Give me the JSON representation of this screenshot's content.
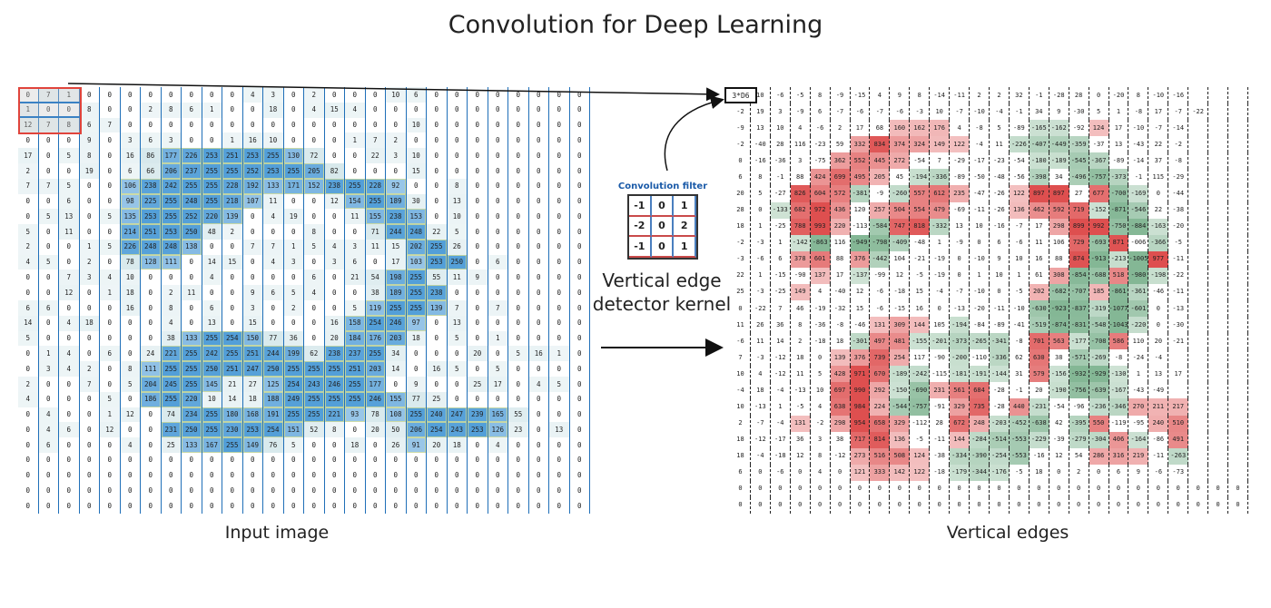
{
  "title": "Convolution for Deep Learning",
  "input_caption": "Input image",
  "output_caption": "Vertical edges",
  "kernel": {
    "title": "Convolution filter",
    "label_line1": "Vertical edge",
    "label_line2": "detector kernel",
    "values": [
      [
        "-1",
        "0",
        "1"
      ],
      [
        "-2",
        "0",
        "2"
      ],
      [
        "-1",
        "0",
        "1"
      ]
    ]
  },
  "output_first_value": "3*D6",
  "input_rows": [
    [
      "0",
      "7",
      "1",
      "0",
      "0",
      "0",
      "0",
      "0",
      "0",
      "0",
      "0",
      "4",
      "3",
      "0",
      "2",
      "0",
      "0",
      "0",
      "10",
      "6",
      "0",
      "0",
      "0",
      "0",
      "0",
      "0",
      "0",
      "0"
    ],
    [
      "1",
      "0",
      "0",
      "8",
      "0",
      "0",
      "2",
      "8",
      "6",
      "1",
      "0",
      "0",
      "18",
      "0",
      "4",
      "15",
      "4",
      "0",
      "0",
      "0",
      "0",
      "0",
      "0",
      "0",
      "0",
      "0",
      "0",
      "0"
    ],
    [
      "12",
      "7",
      "8",
      "6",
      "7",
      "0",
      "0",
      "0",
      "0",
      "0",
      "0",
      "0",
      "0",
      "0",
      "0",
      "0",
      "0",
      "0",
      "0",
      "10",
      "0",
      "0",
      "0",
      "0",
      "0",
      "0",
      "0",
      "0"
    ],
    [
      "0",
      "0",
      "0",
      "9",
      "0",
      "3",
      "6",
      "3",
      "0",
      "0",
      "1",
      "16",
      "10",
      "0",
      "0",
      "0",
      "1",
      "7",
      "2",
      "0",
      "0",
      "0",
      "0",
      "0",
      "0",
      "0",
      "0",
      "0"
    ],
    [
      "17",
      "0",
      "5",
      "8",
      "0",
      "16",
      "86",
      "177",
      "226",
      "253",
      "251",
      "253",
      "255",
      "130",
      "72",
      "0",
      "0",
      "22",
      "3",
      "10",
      "0",
      "0",
      "0",
      "0",
      "0",
      "0",
      "0",
      "0"
    ],
    [
      "2",
      "0",
      "0",
      "19",
      "0",
      "6",
      "66",
      "206",
      "237",
      "255",
      "255",
      "252",
      "253",
      "255",
      "205",
      "82",
      "0",
      "0",
      "0",
      "15",
      "0",
      "0",
      "0",
      "0",
      "0",
      "0",
      "0",
      "0"
    ],
    [
      "7",
      "7",
      "5",
      "0",
      "0",
      "106",
      "238",
      "242",
      "255",
      "255",
      "228",
      "192",
      "133",
      "171",
      "152",
      "238",
      "255",
      "228",
      "92",
      "0",
      "0",
      "8",
      "0",
      "0",
      "0",
      "0",
      "0",
      "0"
    ],
    [
      "0",
      "0",
      "6",
      "0",
      "0",
      "98",
      "225",
      "255",
      "248",
      "255",
      "218",
      "107",
      "11",
      "0",
      "0",
      "12",
      "154",
      "255",
      "189",
      "30",
      "0",
      "13",
      "0",
      "0",
      "0",
      "0",
      "0",
      "0"
    ],
    [
      "0",
      "5",
      "13",
      "0",
      "5",
      "135",
      "253",
      "255",
      "252",
      "220",
      "139",
      "0",
      "4",
      "19",
      "0",
      "0",
      "11",
      "155",
      "238",
      "153",
      "0",
      "10",
      "0",
      "0",
      "0",
      "0",
      "0",
      "0"
    ],
    [
      "5",
      "0",
      "11",
      "0",
      "0",
      "214",
      "251",
      "253",
      "250",
      "48",
      "2",
      "0",
      "0",
      "0",
      "8",
      "0",
      "0",
      "71",
      "244",
      "248",
      "22",
      "5",
      "0",
      "0",
      "0",
      "0",
      "0",
      "0"
    ],
    [
      "2",
      "0",
      "0",
      "1",
      "5",
      "226",
      "248",
      "248",
      "138",
      "0",
      "0",
      "7",
      "7",
      "1",
      "5",
      "4",
      "3",
      "11",
      "15",
      "202",
      "255",
      "26",
      "0",
      "0",
      "0",
      "0",
      "0",
      "0"
    ],
    [
      "4",
      "5",
      "0",
      "2",
      "0",
      "78",
      "128",
      "111",
      "0",
      "14",
      "15",
      "0",
      "4",
      "3",
      "0",
      "3",
      "6",
      "0",
      "17",
      "103",
      "253",
      "250",
      "0",
      "6",
      "0",
      "0",
      "0",
      "0"
    ],
    [
      "0",
      "0",
      "7",
      "3",
      "4",
      "10",
      "0",
      "0",
      "0",
      "4",
      "0",
      "0",
      "0",
      "0",
      "6",
      "0",
      "21",
      "54",
      "198",
      "255",
      "55",
      "11",
      "9",
      "0",
      "0",
      "0",
      "0",
      "0"
    ],
    [
      "0",
      "0",
      "12",
      "0",
      "1",
      "18",
      "0",
      "2",
      "11",
      "0",
      "0",
      "9",
      "6",
      "5",
      "4",
      "0",
      "0",
      "38",
      "189",
      "255",
      "238",
      "0",
      "0",
      "0",
      "0",
      "0",
      "0",
      "0"
    ],
    [
      "6",
      "6",
      "0",
      "0",
      "0",
      "16",
      "0",
      "8",
      "0",
      "6",
      "0",
      "3",
      "0",
      "2",
      "0",
      "0",
      "5",
      "119",
      "255",
      "255",
      "139",
      "7",
      "0",
      "7",
      "0",
      "0",
      "0",
      "0"
    ],
    [
      "14",
      "0",
      "4",
      "18",
      "0",
      "0",
      "0",
      "4",
      "0",
      "13",
      "0",
      "15",
      "0",
      "0",
      "0",
      "16",
      "158",
      "254",
      "246",
      "97",
      "0",
      "13",
      "0",
      "0",
      "0",
      "0",
      "0",
      "0"
    ],
    [
      "5",
      "0",
      "0",
      "0",
      "0",
      "0",
      "0",
      "38",
      "133",
      "255",
      "254",
      "150",
      "77",
      "36",
      "0",
      "20",
      "184",
      "176",
      "203",
      "18",
      "0",
      "5",
      "0",
      "1",
      "0",
      "0",
      "0",
      "0"
    ],
    [
      "0",
      "1",
      "4",
      "0",
      "6",
      "0",
      "24",
      "221",
      "255",
      "242",
      "255",
      "251",
      "244",
      "199",
      "62",
      "238",
      "237",
      "255",
      "34",
      "0",
      "0",
      "0",
      "20",
      "0",
      "5",
      "16",
      "1",
      "0"
    ],
    [
      "0",
      "3",
      "4",
      "2",
      "0",
      "8",
      "111",
      "255",
      "255",
      "250",
      "251",
      "247",
      "250",
      "255",
      "255",
      "255",
      "251",
      "203",
      "14",
      "0",
      "16",
      "5",
      "0",
      "5",
      "0",
      "0",
      "0",
      "0"
    ],
    [
      "2",
      "0",
      "0",
      "7",
      "0",
      "5",
      "204",
      "245",
      "255",
      "145",
      "21",
      "27",
      "125",
      "254",
      "243",
      "246",
      "255",
      "177",
      "0",
      "9",
      "0",
      "0",
      "25",
      "17",
      "0",
      "4",
      "5",
      "0"
    ],
    [
      "4",
      "0",
      "0",
      "0",
      "5",
      "0",
      "186",
      "255",
      "220",
      "10",
      "14",
      "18",
      "188",
      "249",
      "255",
      "255",
      "255",
      "246",
      "155",
      "77",
      "25",
      "0",
      "0",
      "0",
      "0",
      "0",
      "0",
      "0"
    ],
    [
      "0",
      "4",
      "0",
      "0",
      "1",
      "12",
      "0",
      "74",
      "234",
      "255",
      "180",
      "168",
      "191",
      "255",
      "255",
      "221",
      "93",
      "78",
      "108",
      "255",
      "240",
      "247",
      "239",
      "165",
      "55",
      "0",
      "0",
      "0"
    ],
    [
      "0",
      "4",
      "6",
      "0",
      "12",
      "0",
      "0",
      "231",
      "250",
      "255",
      "230",
      "253",
      "254",
      "151",
      "52",
      "8",
      "0",
      "20",
      "50",
      "206",
      "254",
      "243",
      "253",
      "126",
      "23",
      "0",
      "13",
      "0"
    ],
    [
      "0",
      "6",
      "0",
      "0",
      "0",
      "4",
      "0",
      "25",
      "133",
      "167",
      "255",
      "149",
      "76",
      "5",
      "0",
      "0",
      "18",
      "0",
      "26",
      "91",
      "20",
      "18",
      "0",
      "4",
      "0",
      "0",
      "0",
      "0"
    ],
    [
      "0",
      "0",
      "0",
      "0",
      "0",
      "0",
      "0",
      "0",
      "0",
      "0",
      "0",
      "0",
      "0",
      "0",
      "0",
      "0",
      "0",
      "0",
      "0",
      "0",
      "0",
      "0",
      "0",
      "0",
      "0",
      "0",
      "0",
      "0"
    ],
    [
      "0",
      "0",
      "0",
      "0",
      "0",
      "0",
      "0",
      "0",
      "0",
      "0",
      "0",
      "0",
      "0",
      "0",
      "0",
      "0",
      "0",
      "0",
      "0",
      "0",
      "0",
      "0",
      "0",
      "0",
      "0",
      "0",
      "0",
      "0"
    ],
    [
      "0",
      "0",
      "0",
      "0",
      "0",
      "0",
      "0",
      "0",
      "0",
      "0",
      "0",
      "0",
      "0",
      "0",
      "0",
      "0",
      "0",
      "0",
      "0",
      "0",
      "0",
      "0",
      "0",
      "0",
      "0",
      "0",
      "0",
      "0"
    ],
    [
      "0",
      "0",
      "0",
      "0",
      "0",
      "0",
      "0",
      "0",
      "0",
      "0",
      "0",
      "0",
      "0",
      "0",
      "0",
      "0",
      "0",
      "0",
      "0",
      "0",
      "0",
      "0",
      "0",
      "0",
      "0",
      "0",
      "0",
      "0"
    ]
  ],
  "output_rows": [
    [
      "",
      "10",
      "-6",
      "-5",
      "8",
      "-9",
      "-15",
      "4",
      "9",
      "8",
      "-14",
      "-11",
      "2",
      "2",
      "32",
      "-1",
      "-28",
      "28",
      "0",
      "-20",
      "8",
      "-10",
      "-16",
      "",
      "",
      ""
    ],
    [
      "-2",
      "19",
      "3",
      "-9",
      "6",
      "-7",
      "-6",
      "-7",
      "-6",
      "-3",
      "10",
      "-7",
      "-10",
      "-4",
      "-1",
      "34",
      "9",
      "-30",
      "5",
      "1",
      "-8",
      "17",
      "-7",
      "-22",
      "",
      ""
    ],
    [
      "-9",
      "13",
      "10",
      "4",
      "-6",
      "2",
      "17",
      "68",
      "160",
      "162",
      "176",
      "4",
      "-8",
      "5",
      "-89",
      "-165",
      "-162",
      "-92",
      "124",
      "17",
      "-10",
      "-7",
      "-14",
      "",
      ""
    ],
    [
      "-2",
      "-40",
      "28",
      "116",
      "-23",
      "59",
      "332",
      "834",
      "374",
      "324",
      "149",
      "122",
      "-4",
      "11",
      "-226",
      "-407",
      "-449",
      "-359",
      "-37",
      "13",
      "-43",
      "22",
      "-2",
      "",
      ""
    ],
    [
      "0",
      "-16",
      "-36",
      "3",
      "-75",
      "362",
      "552",
      "445",
      "272",
      "-54",
      "7",
      "-29",
      "-17",
      "-23",
      "-54",
      "-180",
      "-189",
      "-545",
      "-367",
      "-89",
      "-14",
      "37",
      "-8",
      "",
      ""
    ],
    [
      "6",
      "8",
      "-1",
      "88",
      "424",
      "699",
      "495",
      "205",
      "45",
      "-194",
      "-336",
      "-89",
      "-50",
      "-48",
      "-56",
      "-398",
      "34",
      "-496",
      "-757",
      "-373",
      "-1",
      "115",
      "-29",
      ""
    ],
    [
      "20",
      "5",
      "-27",
      "826",
      "604",
      "572",
      "-381",
      "-9",
      "-260",
      "557",
      "612",
      "235",
      "-47",
      "-26",
      "122",
      "897",
      "897",
      "27",
      "677",
      "-700",
      "-169",
      "0",
      "-44",
      ""
    ],
    [
      "28",
      "0",
      "-133",
      "682",
      "972",
      "436",
      "120",
      "257",
      "504",
      "554",
      "479",
      "-69",
      "-11",
      "-26",
      "136",
      "462",
      "592",
      "719",
      "-152",
      "-871",
      "-546",
      "22",
      "-38",
      ""
    ],
    [
      "18",
      "1",
      "-25",
      "788",
      "993",
      "220",
      "-113",
      "-584",
      "747",
      "818",
      "-332",
      "13",
      "10",
      "-16",
      "-7",
      "17",
      "298",
      "899",
      "992",
      "-750",
      "-884",
      "-163",
      "-20",
      ""
    ],
    [
      "-2",
      "-3",
      "1",
      "-142",
      "-863",
      "116",
      "-949",
      "-798",
      "-409",
      "-48",
      "1",
      "-9",
      "0",
      "6",
      "-6",
      "11",
      "106",
      "729",
      "-693",
      "871",
      "-006",
      "-366",
      "-5",
      ""
    ],
    [
      "-3",
      "-6",
      "6",
      "378",
      "601",
      "88",
      "376",
      "-442",
      "104",
      "-21",
      "-19",
      "0",
      "-10",
      "9",
      "10",
      "16",
      "88",
      "874",
      "-913",
      "-213",
      "-1005",
      "977",
      "-11",
      ""
    ],
    [
      "22",
      "1",
      "-15",
      "-90",
      "137",
      "17",
      "-137",
      "-99",
      "12",
      "-5",
      "-19",
      "0",
      "1",
      "10",
      "1",
      "61",
      "308",
      "-854",
      "-688",
      "518",
      "-980",
      "-198",
      "-22",
      ""
    ],
    [
      "25",
      "-3",
      "-25",
      "149",
      "4",
      "-40",
      "12",
      "-6",
      "-18",
      "15",
      "-4",
      "-7",
      "-10",
      "0",
      "-5",
      "202",
      "-682",
      "-707",
      "185",
      "-861",
      "-361",
      "-46",
      "-11",
      ""
    ],
    [
      "0",
      "-22",
      "7",
      "46",
      "-19",
      "-32",
      "15",
      "-6",
      "-15",
      "16",
      "0",
      "-13",
      "-20",
      "-11",
      "-10",
      "-630",
      "-923",
      "-837",
      "-319",
      "-1077",
      "-601",
      "0",
      "-13",
      ""
    ],
    [
      "11",
      "26",
      "36",
      "8",
      "-36",
      "-8",
      "-46",
      "131",
      "309",
      "144",
      "105",
      "-194",
      "-84",
      "-89",
      "-41",
      "-519",
      "-874",
      "-831",
      "-548",
      "-1043",
      "-220",
      "0",
      "-30",
      ""
    ],
    [
      "-6",
      "11",
      "14",
      "2",
      "-18",
      "18",
      "-301",
      "497",
      "481",
      "-155",
      "-201",
      "-373",
      "-265",
      "-341",
      "-8",
      "701",
      "563",
      "-177",
      "-708",
      "586",
      "110",
      "20",
      "-21",
      ""
    ],
    [
      "7",
      "-3",
      "-12",
      "18",
      "0",
      "139",
      "376",
      "739",
      "254",
      "117",
      "-90",
      "-200",
      "-110",
      "-336",
      "62",
      "630",
      "38",
      "-571",
      "-269",
      "-8",
      "-24",
      "-4",
      ""
    ],
    [
      "10",
      "4",
      "-12",
      "11",
      "5",
      "428",
      "971",
      "670",
      "-189",
      "-242",
      "-115",
      "-181",
      "-191",
      "-144",
      "31",
      "579",
      "-156",
      "-932",
      "-929",
      "-130",
      "1",
      "13",
      "17"
    ],
    [
      "-4",
      "18",
      "-4",
      "-13",
      "10",
      "697",
      "990",
      "292",
      "-150",
      "-690",
      "231",
      "561",
      "684",
      "-28",
      "-1",
      "20",
      "-190",
      "-756",
      "-639",
      "-167",
      "-43",
      "-49",
      ""
    ],
    [
      "10",
      "-13",
      "1",
      "-5",
      "4",
      "638",
      "984",
      "224",
      "-544",
      "-757",
      "-91",
      "329",
      "735",
      "-28",
      "440",
      "-231",
      "-54",
      "-96",
      "-236",
      "-346",
      "270",
      "211",
      "217"
    ],
    [
      "2",
      "-7",
      "-4",
      "131",
      "-2",
      "298",
      "954",
      "658",
      "329",
      "-112",
      "28",
      "672",
      "248",
      "-203",
      "-452",
      "-638",
      "42",
      "-395",
      "550",
      "-119",
      "-95",
      "240",
      "510"
    ],
    [
      "18",
      "-12",
      "-17",
      "36",
      "3",
      "38",
      "717",
      "814",
      "136",
      "-5",
      "-11",
      "144",
      "-284",
      "-514",
      "-553",
      "-229",
      "-39",
      "-279",
      "-304",
      "406",
      "-164",
      "-86",
      "491"
    ],
    [
      "18",
      "-4",
      "-18",
      "12",
      "8",
      "-12",
      "273",
      "516",
      "508",
      "124",
      "-38",
      "-334",
      "-390",
      "-254",
      "-553",
      "-16",
      "12",
      "54",
      "286",
      "316",
      "219",
      "-11",
      "-263"
    ],
    [
      "6",
      "0",
      "-6",
      "0",
      "4",
      "0",
      "121",
      "333",
      "142",
      "122",
      "-18",
      "-179",
      "-344",
      "-176",
      "-5",
      "18",
      "0",
      "2",
      "0",
      "6",
      "9",
      "-6",
      "-73"
    ],
    [
      "0",
      "0",
      "0",
      "0",
      "0",
      "0",
      "0",
      "0",
      "0",
      "0",
      "0",
      "0",
      "0",
      "0",
      "0",
      "0",
      "0",
      "0",
      "0",
      "0",
      "0",
      "0",
      "0",
      "0",
      "0",
      "0"
    ],
    [
      "0",
      "0",
      "0",
      "0",
      "0",
      "0",
      "0",
      "0",
      "0",
      "0",
      "0",
      "0",
      "0",
      "0",
      "0",
      "0",
      "0",
      "0",
      "0",
      "0",
      "0",
      "0",
      "0",
      "0",
      "0",
      "0"
    ]
  ]
}
